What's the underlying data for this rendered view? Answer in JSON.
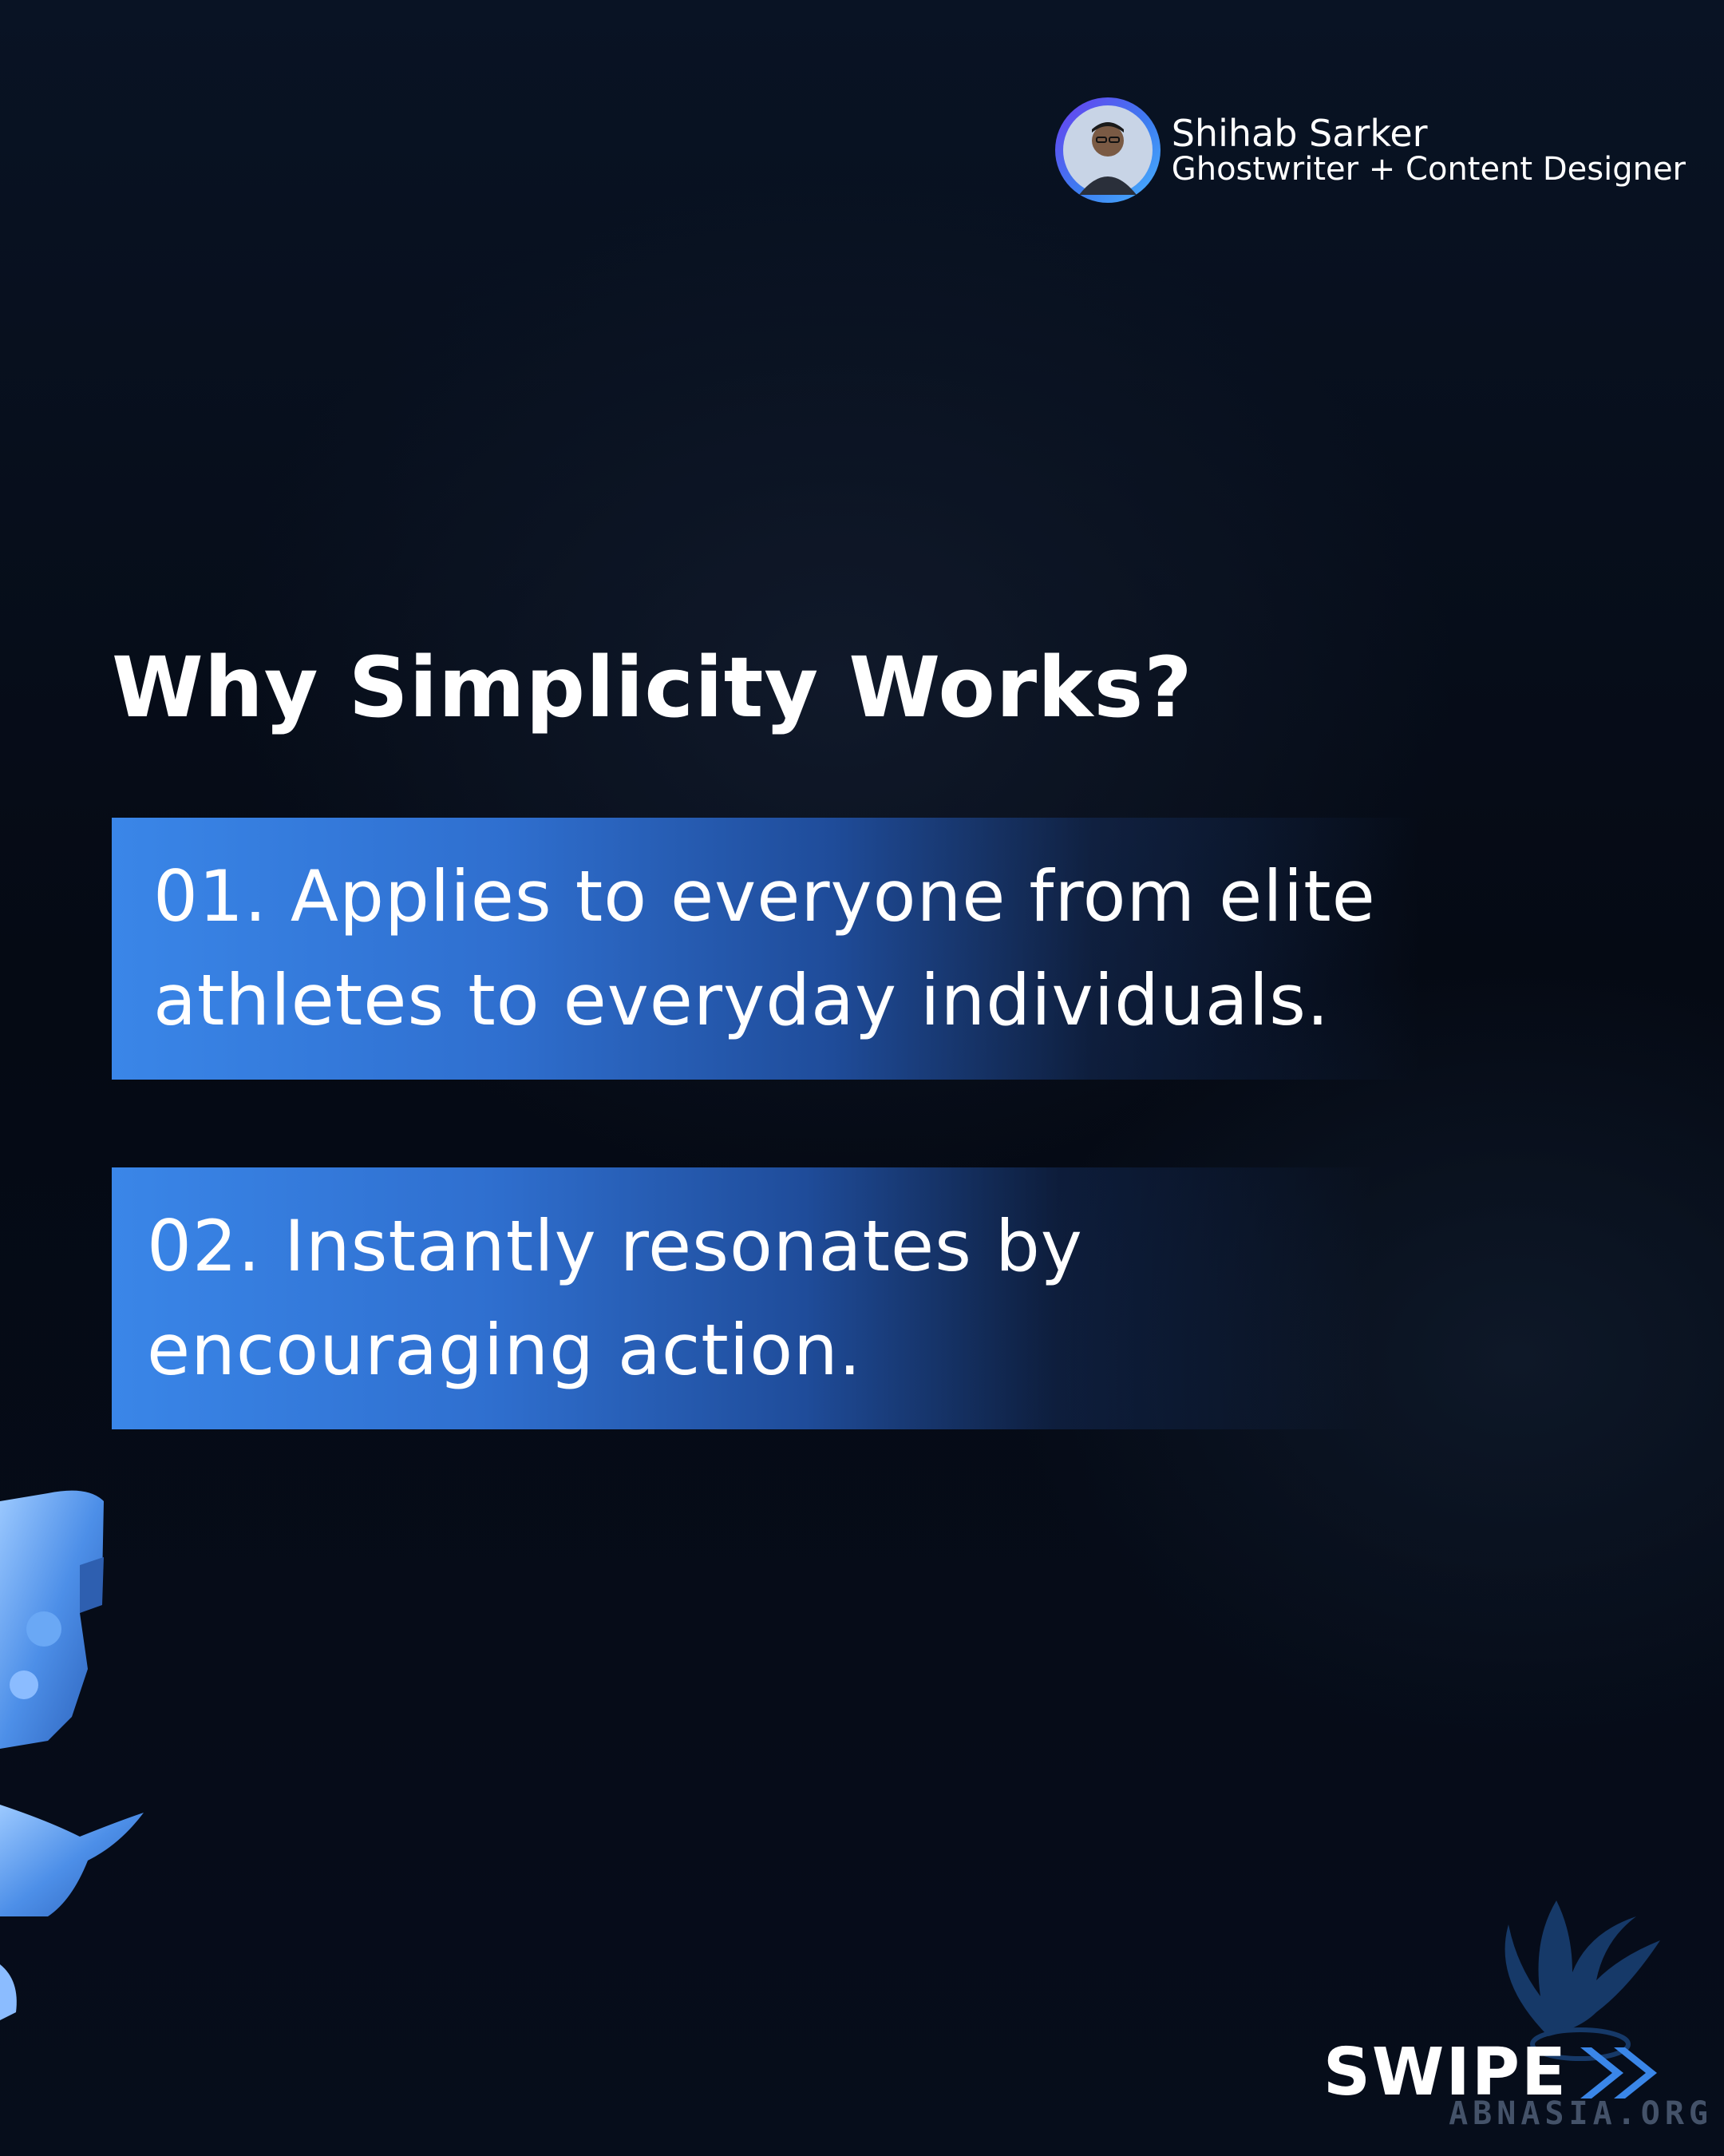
{
  "author": {
    "name": "Shihab Sarker",
    "role": "Ghostwriter + Content Designer",
    "avatar_icon": "person-avatar-icon"
  },
  "title": "Why Simplicity Works?",
  "points": [
    {
      "text": "01. Applies to everyone from elite\nathletes to everyday individuals."
    },
    {
      "text": "02. Instantly resonates by\nencouraging action."
    }
  ],
  "swipe": {
    "label": "SWIPE",
    "icon": "double-chevron-right-icon"
  },
  "watermark": {
    "text": "ABNASIA.ORG",
    "icon": "phoenix-logo-icon"
  },
  "colors": {
    "background": "#050a14",
    "accent_blue": "#3a86e8",
    "text": "#ffffff"
  }
}
